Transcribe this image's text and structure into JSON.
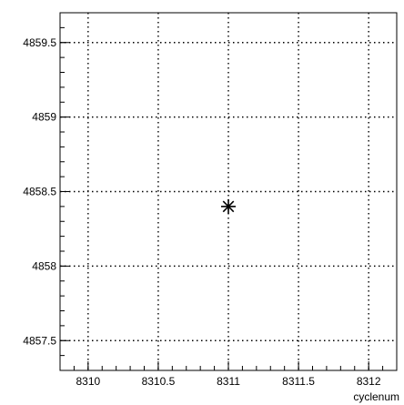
{
  "chart_data": {
    "type": "scatter",
    "title": "",
    "xlabel": "cyclenum",
    "ylabel": "",
    "xlim": [
      8309.8,
      8312.2
    ],
    "ylim": [
      4857.3,
      4859.7
    ],
    "xticks": [
      8310,
      8310.5,
      8311,
      8311.5,
      8312
    ],
    "xtick_labels": [
      "8310",
      "8310.5",
      "8311",
      "8311.5",
      "8312"
    ],
    "yticks": [
      4857.5,
      4858,
      4858.5,
      4859,
      4859.5
    ],
    "ytick_labels": [
      "4857.5",
      "4858",
      "4858.5",
      "4859",
      "4859.5"
    ],
    "grid": true,
    "marker": "asterisk",
    "points": [
      {
        "x": 8311,
        "y": 4858.4
      }
    ]
  }
}
